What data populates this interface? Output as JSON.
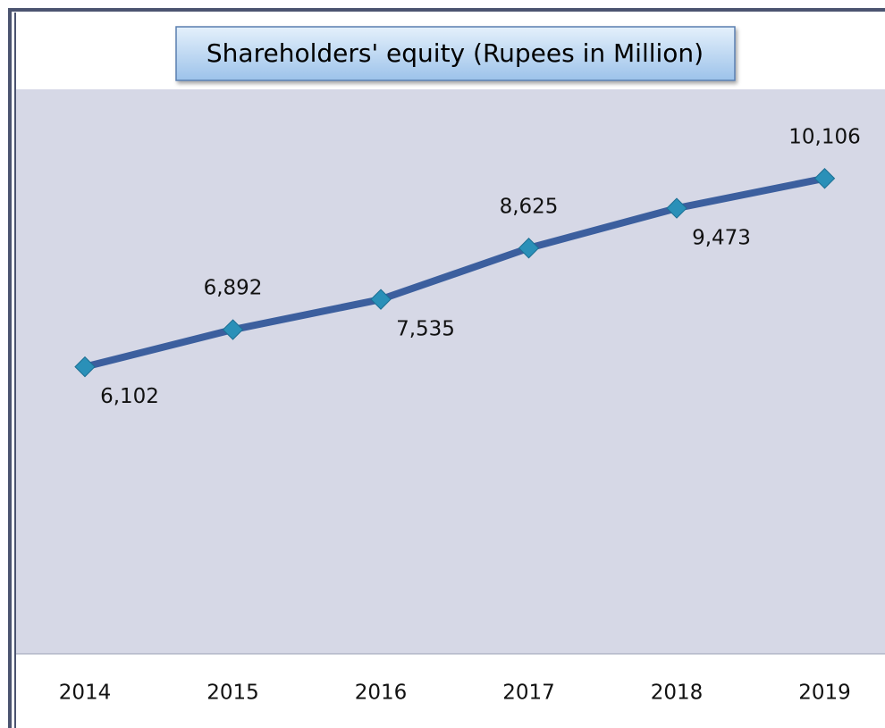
{
  "chart_data": {
    "type": "line",
    "title": "Shareholders' equity (Rupees in Million)",
    "categories": [
      "2014",
      "2015",
      "2016",
      "2017",
      "2018",
      "2019"
    ],
    "series": [
      {
        "name": "Shareholders' equity",
        "color": "#3c5f9e",
        "values": [
          6102,
          6892,
          7535,
          8625,
          9473,
          10106
        ],
        "value_labels": [
          "6,102",
          "6,892",
          "7,535",
          "8,625",
          "9,473",
          "10,106"
        ]
      }
    ],
    "ylim": [
      0,
      12000
    ],
    "marker_color": "#2a90b8",
    "plot_background": "#d6d8e6"
  }
}
